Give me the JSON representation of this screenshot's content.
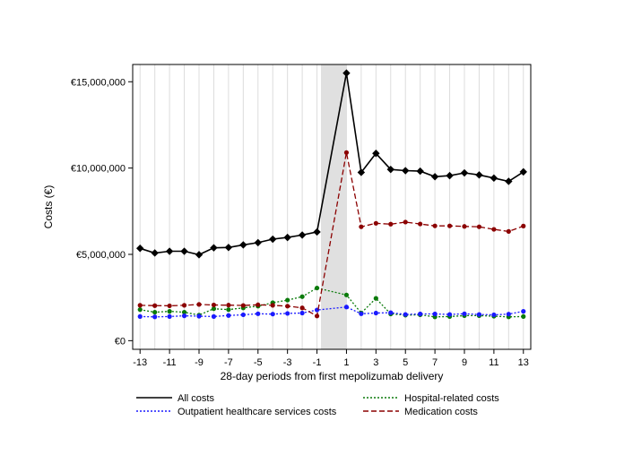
{
  "chart_data": {
    "type": "line",
    "title": "",
    "xlabel": "28-day periods from first mepolizumab delivery",
    "ylabel": "Costs (€)",
    "x": [
      -13,
      -12,
      -11,
      -10,
      -9,
      -8,
      -7,
      -6,
      -5,
      -4,
      -3,
      -2,
      -1,
      1,
      2,
      3,
      4,
      5,
      6,
      7,
      8,
      9,
      10,
      11,
      12,
      13
    ],
    "x_tick_labels": [
      "-13",
      "-11",
      "-9",
      "-7",
      "-5",
      "-3",
      "-1",
      "1",
      "3",
      "5",
      "7",
      "9",
      "11",
      "13"
    ],
    "x_tick_values": [
      -13,
      -11,
      -9,
      -7,
      -5,
      -3,
      -1,
      1,
      3,
      5,
      7,
      9,
      11,
      13
    ],
    "y_tick_labels": [
      "€0",
      "€5,000,000",
      "€10,000,000",
      "€15,000,000"
    ],
    "y_tick_values": [
      0,
      5000000,
      10000000,
      15000000
    ],
    "ylim": [
      -500000,
      16000000
    ],
    "xlim": [
      -13.5,
      13.5
    ],
    "shaded_period": [
      0,
      1
    ],
    "series": [
      {
        "name": "All costs",
        "color": "#000000",
        "marker": "diamond",
        "dash": "",
        "values": [
          5350000,
          5080000,
          5180000,
          5180000,
          4980000,
          5380000,
          5400000,
          5550000,
          5680000,
          5880000,
          5980000,
          6120000,
          6300000,
          15500000,
          9750000,
          10850000,
          9920000,
          9850000,
          9820000,
          9500000,
          9560000,
          9720000,
          9600000,
          9420000,
          9230000,
          9780000
        ]
      },
      {
        "name": "Hospital-related costs",
        "color": "#0a7a0a",
        "marker": "circle",
        "dash": "2,2",
        "values": [
          1800000,
          1650000,
          1700000,
          1650000,
          1480000,
          1850000,
          1800000,
          1900000,
          2000000,
          2200000,
          2350000,
          2550000,
          3050000,
          2650000,
          1600000,
          2450000,
          1550000,
          1480000,
          1500000,
          1380000,
          1400000,
          1450000,
          1450000,
          1420000,
          1380000,
          1400000
        ]
      },
      {
        "name": "Outpatient healthcare services costs",
        "color": "#1a1aff",
        "marker": "circle",
        "dash": "2,2",
        "values": [
          1400000,
          1380000,
          1400000,
          1440000,
          1420000,
          1400000,
          1460000,
          1500000,
          1560000,
          1540000,
          1580000,
          1600000,
          1780000,
          1950000,
          1560000,
          1600000,
          1620000,
          1520000,
          1550000,
          1550000,
          1520000,
          1560000,
          1520000,
          1500000,
          1540000,
          1700000
        ]
      },
      {
        "name": "Medication costs",
        "color": "#8b0000",
        "marker": "circle",
        "dash": "6,3",
        "values": [
          2050000,
          2030000,
          2020000,
          2050000,
          2100000,
          2070000,
          2060000,
          2040000,
          2080000,
          2050000,
          2000000,
          1900000,
          1430000,
          10900000,
          6600000,
          6800000,
          6750000,
          6870000,
          6760000,
          6650000,
          6650000,
          6620000,
          6600000,
          6450000,
          6330000,
          6640000
        ]
      }
    ],
    "legend": [
      {
        "label": "All costs",
        "color": "#000000",
        "dash": ""
      },
      {
        "label": "Hospital-related costs",
        "color": "#0a7a0a",
        "dash": "2,2"
      },
      {
        "label": "Outpatient healthcare services costs",
        "color": "#1a1aff",
        "dash": "2,2"
      },
      {
        "label": "Medication costs",
        "color": "#8b0000",
        "dash": "6,3"
      }
    ]
  }
}
